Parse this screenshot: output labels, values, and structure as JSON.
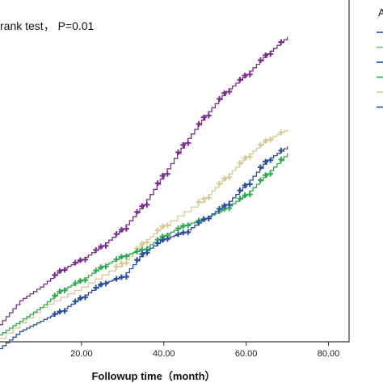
{
  "chart_data": {
    "type": "line",
    "title": "",
    "annotation": "rank test， P=0.01",
    "xlabel": "Followup time（month）",
    "ylabel": "",
    "xlim": [
      0,
      85
    ],
    "ylim": [
      0,
      1
    ],
    "x_ticks": [
      {
        "value": 20,
        "label": "20.00"
      },
      {
        "value": 40,
        "label": "40.00"
      },
      {
        "value": 60,
        "label": "60.00"
      },
      {
        "value": 80,
        "label": "80.00"
      }
    ],
    "grid": false,
    "legend": {
      "title": "A",
      "placement": "right",
      "entries": 6
    },
    "series": [
      {
        "color": "#7a2e8c",
        "x": [
          0,
          5,
          10,
          15,
          20,
          25,
          30,
          35,
          40,
          45,
          50,
          55,
          60,
          65,
          70
        ],
        "y": [
          0.05,
          0.12,
          0.16,
          0.21,
          0.24,
          0.28,
          0.33,
          0.4,
          0.49,
          0.58,
          0.66,
          0.73,
          0.78,
          0.84,
          0.89
        ]
      },
      {
        "color": "#d8c99a",
        "x": [
          0,
          10,
          20,
          30,
          35,
          40,
          50,
          55,
          60,
          65,
          70
        ],
        "y": [
          0.01,
          0.1,
          0.16,
          0.23,
          0.29,
          0.34,
          0.42,
          0.48,
          0.54,
          0.59,
          0.62
        ]
      },
      {
        "color": "#2fa84f",
        "x": [
          0,
          5,
          10,
          15,
          20,
          25,
          30,
          35,
          40,
          45,
          50,
          55,
          60,
          65,
          70
        ],
        "y": [
          0.02,
          0.06,
          0.1,
          0.15,
          0.18,
          0.22,
          0.25,
          0.27,
          0.31,
          0.34,
          0.36,
          0.39,
          0.43,
          0.49,
          0.55
        ]
      },
      {
        "color": "#2a4f9c",
        "x": [
          0,
          5,
          10,
          15,
          20,
          25,
          30,
          35,
          40,
          45,
          50,
          55,
          60,
          65,
          70
        ],
        "y": [
          -0.02,
          0.03,
          0.06,
          0.09,
          0.13,
          0.17,
          0.19,
          0.26,
          0.3,
          0.32,
          0.36,
          0.4,
          0.46,
          0.53,
          0.57
        ]
      }
    ],
    "legend_colors": [
      "#2a4f9c",
      "#7fbf7f",
      "#2a4f9c",
      "#2fa84f",
      "#d8c99a",
      "#2a4f9c"
    ]
  }
}
